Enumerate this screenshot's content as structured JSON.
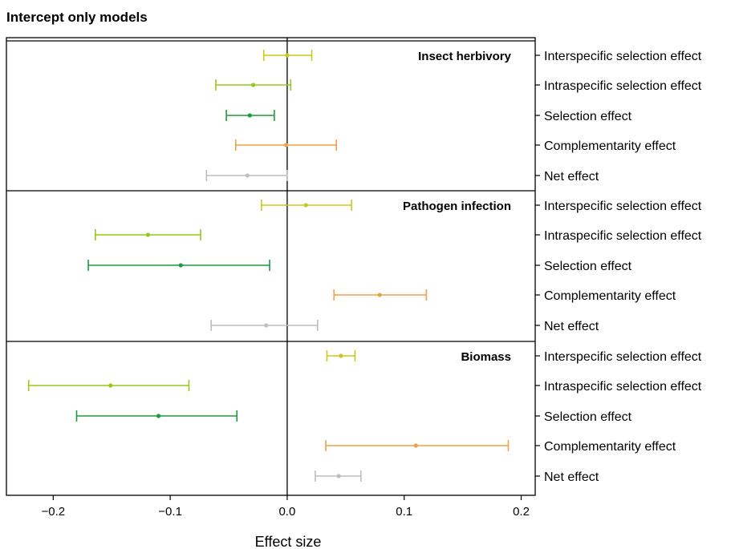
{
  "chart_data": {
    "type": "forest",
    "title": "Intercept only models",
    "xlabel": "Effect size",
    "xlim": [
      -0.24,
      0.212
    ],
    "xticks": [
      -0.2,
      -0.1,
      0.0,
      0.1,
      0.2
    ],
    "xtick_labels": [
      "−0.2",
      "−0.1",
      "0.0",
      "0.1",
      "0.2"
    ],
    "categories": [
      "Interspecific selection effect",
      "Intraspecific selection effect",
      "Selection effect",
      "Complementarity effect",
      "Net effect"
    ],
    "colors": [
      "#c8c81e",
      "#96c81e",
      "#1e9b3c",
      "#f0a046",
      "#bebebe"
    ],
    "reference_line": 0.0,
    "panels": [
      {
        "label": "Insect herbivory",
        "estimates": [
          {
            "category": "Interspecific selection effect",
            "mean": 0.0,
            "lower": -0.02,
            "upper": 0.021
          },
          {
            "category": "Intraspecific selection effect",
            "mean": -0.029,
            "lower": -0.061,
            "upper": 0.003
          },
          {
            "category": "Selection effect",
            "mean": -0.032,
            "lower": -0.052,
            "upper": -0.011
          },
          {
            "category": "Complementarity effect",
            "mean": -0.001,
            "lower": -0.044,
            "upper": 0.042
          },
          {
            "category": "Net effect",
            "mean": -0.034,
            "lower": -0.069,
            "upper": 0.0
          }
        ]
      },
      {
        "label": "Pathogen infection",
        "estimates": [
          {
            "category": "Interspecific selection effect",
            "mean": 0.016,
            "lower": -0.022,
            "upper": 0.055
          },
          {
            "category": "Intraspecific selection effect",
            "mean": -0.119,
            "lower": -0.164,
            "upper": -0.074
          },
          {
            "category": "Selection effect",
            "mean": -0.091,
            "lower": -0.17,
            "upper": -0.015
          },
          {
            "category": "Complementarity effect",
            "mean": 0.079,
            "lower": 0.04,
            "upper": 0.119
          },
          {
            "category": "Net effect",
            "mean": -0.018,
            "lower": -0.065,
            "upper": 0.026
          }
        ]
      },
      {
        "label": "Biomass",
        "estimates": [
          {
            "category": "Interspecific selection effect",
            "mean": 0.046,
            "lower": 0.034,
            "upper": 0.058
          },
          {
            "category": "Intraspecific selection effect",
            "mean": -0.151,
            "lower": -0.221,
            "upper": -0.084
          },
          {
            "category": "Selection effect",
            "mean": -0.11,
            "lower": -0.18,
            "upper": -0.043
          },
          {
            "category": "Complementarity effect",
            "mean": 0.11,
            "lower": 0.033,
            "upper": 0.189
          },
          {
            "category": "Net effect",
            "mean": 0.044,
            "lower": 0.024,
            "upper": 0.063
          }
        ]
      }
    ]
  }
}
